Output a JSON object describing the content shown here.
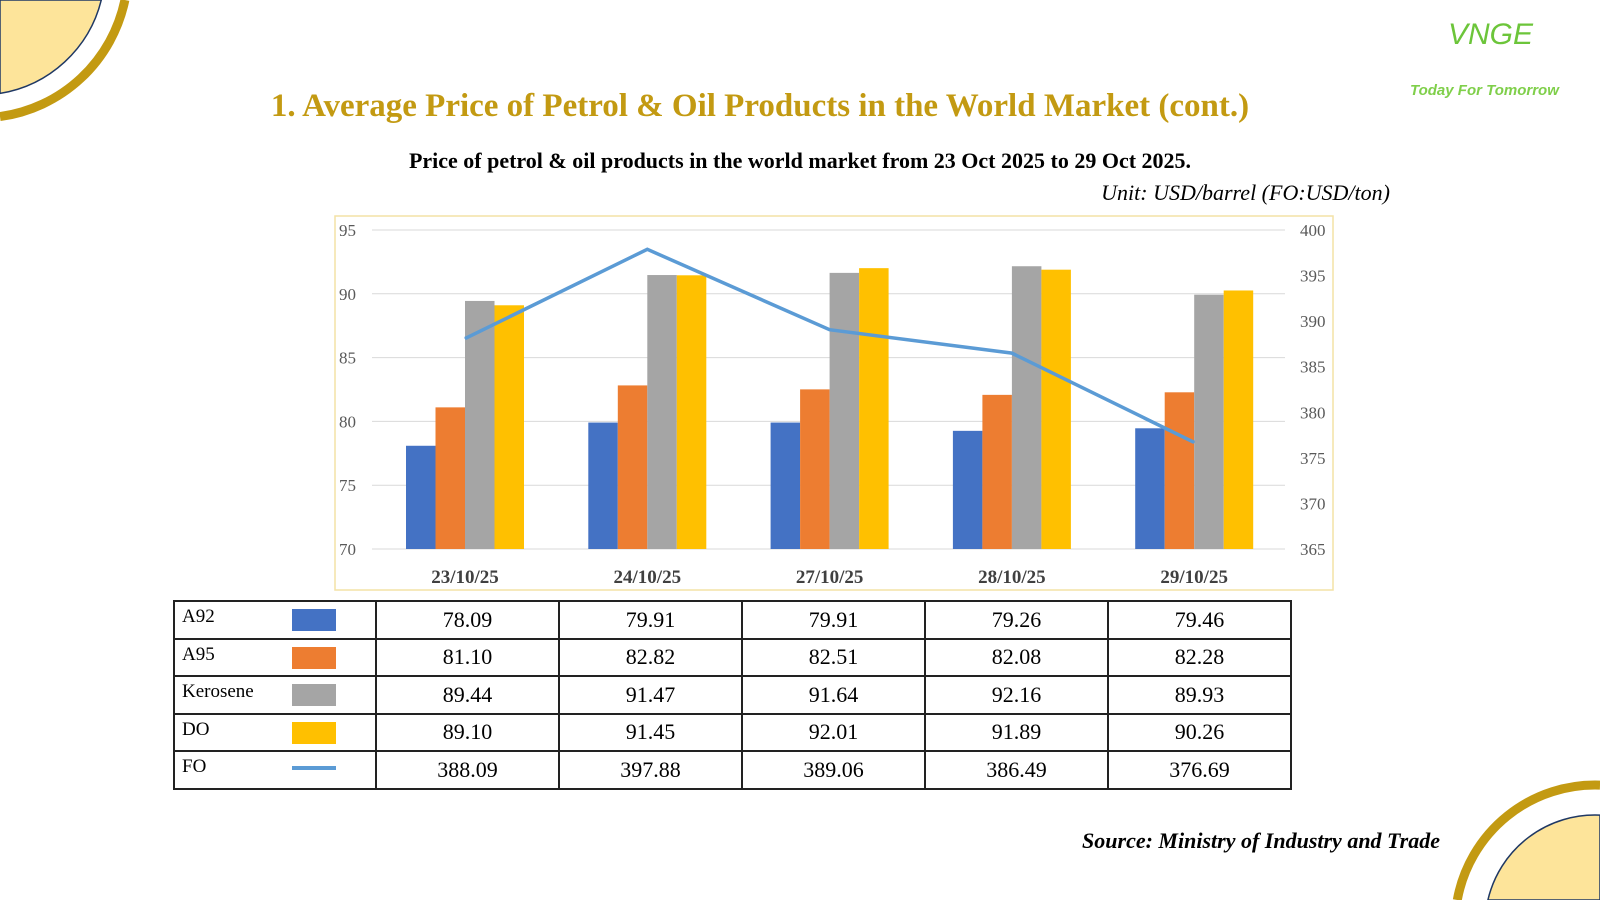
{
  "header": {
    "title": "1. Average Price of Petrol & Oil Products in the World Market (cont.)",
    "subtitle": "Price of petrol & oil products in the world market from 23 Oct 2025 to 29 Oct 2025.",
    "unit": "Unit: USD/barrel (FO:USD/ton)"
  },
  "logo": {
    "brand": "VNGE",
    "tagline": "Today For Tomorrow"
  },
  "source": "Source: Ministry of Industry and Trade",
  "chart_data": {
    "type": "bar",
    "categories": [
      "23/10/25",
      "24/10/25",
      "27/10/25",
      "28/10/25",
      "29/10/25"
    ],
    "series": [
      {
        "name": "A92",
        "kind": "bar",
        "axis": "left",
        "color": "#4472c4",
        "values": [
          78.09,
          79.91,
          79.91,
          79.26,
          79.46
        ]
      },
      {
        "name": "A95",
        "kind": "bar",
        "axis": "left",
        "color": "#ed7d31",
        "values": [
          81.1,
          82.82,
          82.51,
          82.08,
          82.28
        ]
      },
      {
        "name": "Kerosene",
        "kind": "bar",
        "axis": "left",
        "color": "#a5a5a5",
        "values": [
          89.44,
          91.47,
          91.64,
          92.16,
          89.93
        ]
      },
      {
        "name": "DO",
        "kind": "bar",
        "axis": "left",
        "color": "#ffc000",
        "values": [
          89.1,
          91.45,
          92.01,
          91.89,
          90.26
        ]
      },
      {
        "name": "FO",
        "kind": "line",
        "axis": "right",
        "color": "#5b9bd5",
        "values": [
          388.09,
          397.88,
          389.06,
          386.49,
          376.69
        ]
      }
    ],
    "ylim": [
      70,
      95
    ],
    "yticks": [
      70,
      75,
      80,
      85,
      90,
      95
    ],
    "y2lim": [
      365,
      400
    ],
    "y2ticks": [
      365,
      370,
      375,
      380,
      385,
      390,
      395,
      400
    ],
    "grid": true,
    "legend": "table-below"
  },
  "table": {
    "rows": [
      {
        "label": "A92",
        "cells": [
          "78.09",
          "79.91",
          "79.91",
          "79.26",
          "79.46"
        ]
      },
      {
        "label": "A95",
        "cells": [
          "81.10",
          "82.82",
          "82.51",
          "82.08",
          "82.28"
        ]
      },
      {
        "label": "Kerosene",
        "cells": [
          "89.44",
          "91.47",
          "91.64",
          "92.16",
          "89.93"
        ]
      },
      {
        "label": "DO",
        "cells": [
          "89.10",
          "91.45",
          "92.01",
          "91.89",
          "90.26"
        ]
      },
      {
        "label": "FO",
        "cells": [
          "388.09",
          "397.88",
          "389.06",
          "386.49",
          "376.69"
        ]
      }
    ]
  }
}
